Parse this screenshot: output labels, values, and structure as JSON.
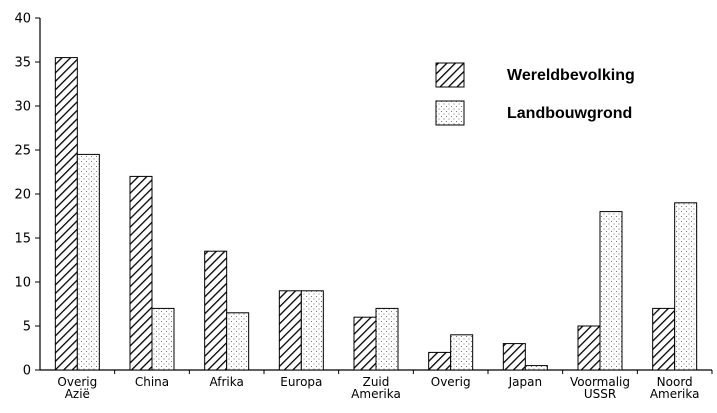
{
  "chart_data": {
    "type": "bar",
    "categories": [
      [
        "Overig",
        "Azië"
      ],
      [
        "China"
      ],
      [
        "Afrika"
      ],
      [
        "Europa"
      ],
      [
        "Zuid",
        "Amerika"
      ],
      [
        "Overig"
      ],
      [
        "Japan"
      ],
      [
        "Voormalig",
        "USSR"
      ],
      [
        "Noord",
        "Amerika"
      ]
    ],
    "series": [
      {
        "name": "Wereldbevolking",
        "pattern": "hatch",
        "values": [
          35.5,
          22,
          13.5,
          9,
          6,
          2,
          3,
          5,
          7
        ]
      },
      {
        "name": "Landbouwgrond",
        "pattern": "dots",
        "values": [
          24.5,
          7,
          6.5,
          9,
          7,
          4,
          0.5,
          18,
          19
        ]
      }
    ],
    "title": "",
    "xlabel": "",
    "ylabel": "",
    "ylim": [
      0,
      40
    ],
    "yticks": [
      "0",
      "5",
      "10",
      "15",
      "20",
      "25",
      "30",
      "35",
      "40"
    ],
    "grid": false,
    "legend": "top-right",
    "colors": {
      "axis": "#000000",
      "bar_stroke": "#000000",
      "fill": "#ffffff"
    }
  }
}
